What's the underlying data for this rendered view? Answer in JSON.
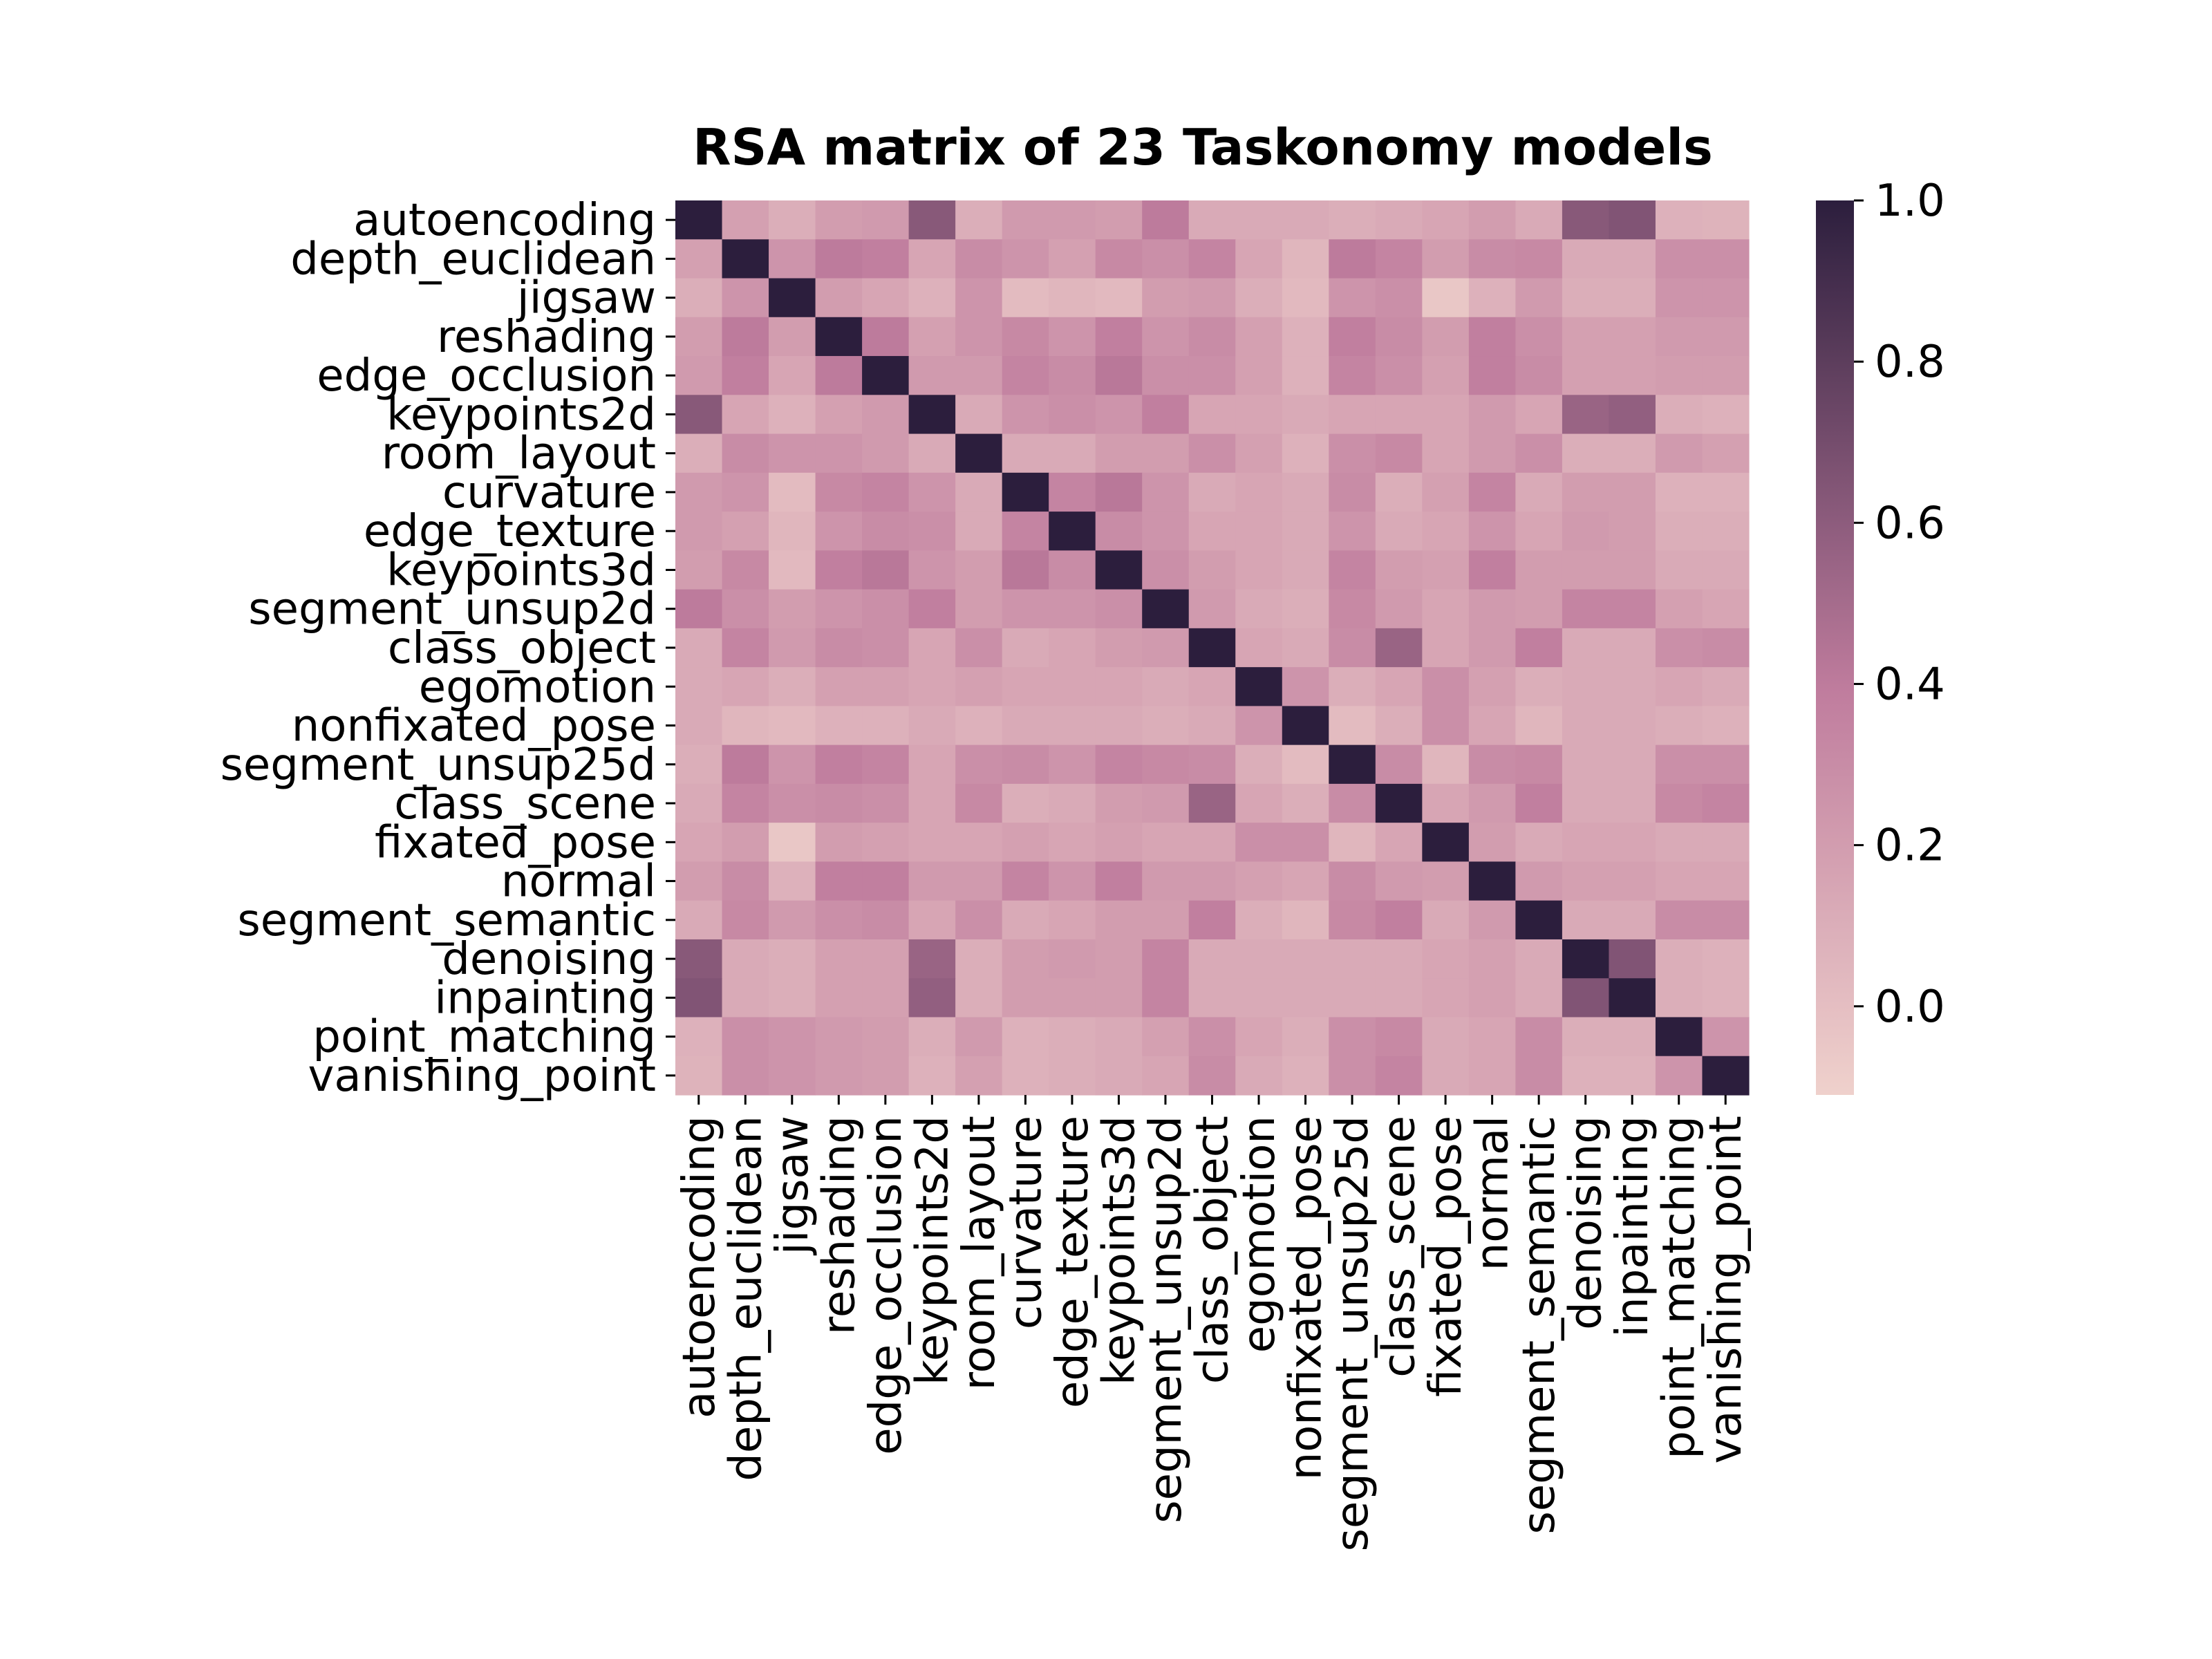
{
  "chart_data": {
    "type": "heatmap",
    "title": "RSA matrix of 23 Taskonomy models",
    "xlabel": "",
    "ylabel": "",
    "labels": [
      "autoencoding",
      "depth_euclidean",
      "jigsaw",
      "reshading",
      "edge_occlusion",
      "keypoints2d",
      "room_layout",
      "curvature",
      "edge_texture",
      "keypoints3d",
      "segment_unsup2d",
      "class_object",
      "egomotion",
      "nonfixated_pose",
      "segment_unsup25d",
      "class_scene",
      "fixated_pose",
      "normal",
      "segment_semantic",
      "denoising",
      "inpainting",
      "point_matching",
      "vanishing_point"
    ],
    "colorbar": {
      "ticks": [
        0.0,
        0.2,
        0.4,
        0.6,
        0.8,
        1.0
      ],
      "tick_labels": [
        "0.0",
        "0.2",
        "0.4",
        "0.6",
        "0.8",
        "1.0"
      ],
      "vmin": -0.11,
      "vmax": 1.0
    },
    "colormap": {
      "low": "#efd1cc",
      "mid": "#c07d9e",
      "high": "#2c1e3d"
    },
    "matrix": [
      [
        1.0,
        0.18,
        0.1,
        0.2,
        0.22,
        0.62,
        0.1,
        0.22,
        0.22,
        0.2,
        0.4,
        0.12,
        0.12,
        0.12,
        0.1,
        0.12,
        0.15,
        0.2,
        0.12,
        0.62,
        0.65,
        0.08,
        0.07
      ],
      [
        0.18,
        1.0,
        0.25,
        0.4,
        0.38,
        0.15,
        0.3,
        0.25,
        0.18,
        0.32,
        0.28,
        0.35,
        0.15,
        0.05,
        0.4,
        0.35,
        0.2,
        0.3,
        0.32,
        0.12,
        0.12,
        0.28,
        0.28
      ],
      [
        0.1,
        0.25,
        1.0,
        0.2,
        0.15,
        0.08,
        0.25,
        0.02,
        0.05,
        0.03,
        0.2,
        0.22,
        0.1,
        0.03,
        0.25,
        0.28,
        -0.05,
        0.08,
        0.22,
        0.1,
        0.1,
        0.25,
        0.25
      ],
      [
        0.2,
        0.4,
        0.2,
        1.0,
        0.4,
        0.18,
        0.25,
        0.32,
        0.25,
        0.38,
        0.25,
        0.3,
        0.18,
        0.08,
        0.38,
        0.3,
        0.2,
        0.38,
        0.28,
        0.18,
        0.18,
        0.22,
        0.22
      ],
      [
        0.22,
        0.38,
        0.15,
        0.4,
        1.0,
        0.22,
        0.22,
        0.35,
        0.3,
        0.42,
        0.28,
        0.28,
        0.18,
        0.08,
        0.35,
        0.28,
        0.18,
        0.38,
        0.3,
        0.18,
        0.18,
        0.2,
        0.2
      ],
      [
        0.62,
        0.15,
        0.08,
        0.18,
        0.22,
        1.0,
        0.12,
        0.25,
        0.28,
        0.25,
        0.38,
        0.15,
        0.15,
        0.12,
        0.15,
        0.15,
        0.15,
        0.22,
        0.15,
        0.55,
        0.58,
        0.1,
        0.08
      ],
      [
        0.1,
        0.3,
        0.25,
        0.25,
        0.22,
        0.12,
        1.0,
        0.12,
        0.12,
        0.2,
        0.2,
        0.28,
        0.18,
        0.08,
        0.28,
        0.32,
        0.15,
        0.22,
        0.28,
        0.1,
        0.1,
        0.22,
        0.18
      ],
      [
        0.22,
        0.25,
        0.02,
        0.32,
        0.35,
        0.25,
        0.12,
        1.0,
        0.35,
        0.42,
        0.25,
        0.12,
        0.15,
        0.12,
        0.3,
        0.1,
        0.18,
        0.35,
        0.12,
        0.2,
        0.2,
        0.08,
        0.08
      ],
      [
        0.22,
        0.18,
        0.05,
        0.25,
        0.3,
        0.28,
        0.12,
        0.35,
        1.0,
        0.3,
        0.25,
        0.15,
        0.15,
        0.12,
        0.25,
        0.12,
        0.15,
        0.25,
        0.15,
        0.22,
        0.2,
        0.1,
        0.1
      ],
      [
        0.2,
        0.32,
        0.03,
        0.38,
        0.42,
        0.25,
        0.2,
        0.42,
        0.3,
        1.0,
        0.28,
        0.2,
        0.15,
        0.12,
        0.35,
        0.2,
        0.18,
        0.38,
        0.2,
        0.2,
        0.2,
        0.12,
        0.12
      ],
      [
        0.4,
        0.28,
        0.2,
        0.25,
        0.28,
        0.38,
        0.2,
        0.25,
        0.25,
        0.28,
        1.0,
        0.22,
        0.12,
        0.1,
        0.32,
        0.22,
        0.15,
        0.22,
        0.2,
        0.35,
        0.35,
        0.18,
        0.15
      ],
      [
        0.12,
        0.35,
        0.22,
        0.3,
        0.28,
        0.15,
        0.28,
        0.12,
        0.15,
        0.2,
        0.22,
        1.0,
        0.15,
        0.12,
        0.3,
        0.55,
        0.15,
        0.22,
        0.38,
        0.12,
        0.12,
        0.28,
        0.3
      ],
      [
        0.12,
        0.15,
        0.1,
        0.18,
        0.18,
        0.15,
        0.18,
        0.15,
        0.15,
        0.15,
        0.12,
        0.15,
        1.0,
        0.25,
        0.1,
        0.15,
        0.28,
        0.18,
        0.1,
        0.12,
        0.12,
        0.15,
        0.12
      ],
      [
        0.12,
        0.05,
        0.03,
        0.08,
        0.08,
        0.12,
        0.08,
        0.12,
        0.12,
        0.12,
        0.1,
        0.12,
        0.25,
        1.0,
        0.02,
        0.1,
        0.28,
        0.15,
        0.05,
        0.12,
        0.12,
        0.1,
        0.08
      ],
      [
        0.1,
        0.4,
        0.25,
        0.38,
        0.35,
        0.15,
        0.28,
        0.3,
        0.25,
        0.35,
        0.32,
        0.3,
        0.1,
        0.02,
        1.0,
        0.3,
        0.05,
        0.3,
        0.32,
        0.12,
        0.12,
        0.28,
        0.28
      ],
      [
        0.12,
        0.35,
        0.28,
        0.3,
        0.28,
        0.15,
        0.32,
        0.1,
        0.12,
        0.2,
        0.22,
        0.55,
        0.15,
        0.1,
        0.3,
        1.0,
        0.15,
        0.22,
        0.38,
        0.12,
        0.12,
        0.32,
        0.35
      ],
      [
        0.15,
        0.2,
        -0.05,
        0.2,
        0.18,
        0.15,
        0.15,
        0.18,
        0.15,
        0.18,
        0.15,
        0.15,
        0.28,
        0.28,
        0.05,
        0.15,
        1.0,
        0.2,
        0.12,
        0.15,
        0.15,
        0.12,
        0.12
      ],
      [
        0.2,
        0.3,
        0.08,
        0.38,
        0.38,
        0.22,
        0.22,
        0.35,
        0.25,
        0.38,
        0.22,
        0.22,
        0.18,
        0.15,
        0.3,
        0.22,
        0.2,
        1.0,
        0.22,
        0.18,
        0.18,
        0.15,
        0.15
      ],
      [
        0.12,
        0.32,
        0.22,
        0.28,
        0.3,
        0.15,
        0.28,
        0.12,
        0.15,
        0.2,
        0.2,
        0.38,
        0.1,
        0.05,
        0.32,
        0.38,
        0.12,
        0.22,
        1.0,
        0.12,
        0.12,
        0.3,
        0.3
      ],
      [
        0.62,
        0.12,
        0.1,
        0.18,
        0.18,
        0.55,
        0.1,
        0.2,
        0.22,
        0.2,
        0.35,
        0.12,
        0.12,
        0.12,
        0.12,
        0.12,
        0.15,
        0.18,
        0.12,
        1.0,
        0.65,
        0.1,
        0.08
      ],
      [
        0.65,
        0.12,
        0.1,
        0.18,
        0.18,
        0.58,
        0.1,
        0.2,
        0.2,
        0.2,
        0.35,
        0.12,
        0.12,
        0.12,
        0.12,
        0.12,
        0.15,
        0.18,
        0.12,
        0.65,
        1.0,
        0.1,
        0.08
      ],
      [
        0.08,
        0.28,
        0.25,
        0.22,
        0.2,
        0.1,
        0.22,
        0.08,
        0.1,
        0.12,
        0.18,
        0.28,
        0.15,
        0.1,
        0.28,
        0.32,
        0.12,
        0.15,
        0.3,
        0.1,
        0.1,
        1.0,
        0.25
      ],
      [
        0.07,
        0.28,
        0.25,
        0.22,
        0.2,
        0.08,
        0.18,
        0.08,
        0.1,
        0.12,
        0.15,
        0.3,
        0.12,
        0.08,
        0.28,
        0.35,
        0.12,
        0.15,
        0.3,
        0.08,
        0.08,
        0.25,
        1.0
      ]
    ]
  }
}
